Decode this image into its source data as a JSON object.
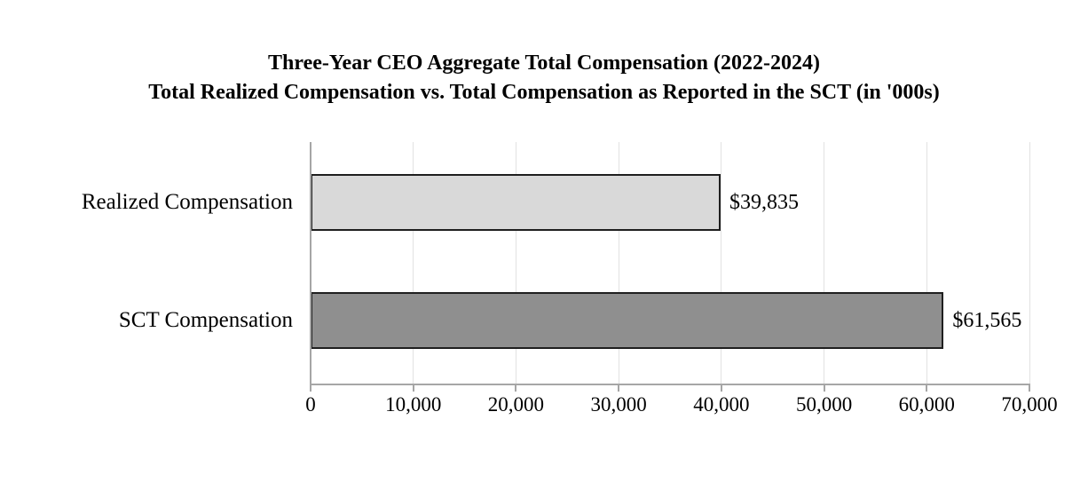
{
  "title": {
    "line1": "Three-Year CEO Aggregate Total Compensation (2022-2024)",
    "line2": "Total Realized Compensation vs. Total Compensation as Reported in the SCT (in '000s)"
  },
  "chart_data": {
    "type": "bar",
    "orientation": "horizontal",
    "title": "Three-Year CEO Aggregate Total Compensation (2022-2024)",
    "subtitle": "Total Realized Compensation vs. Total Compensation as Reported in the SCT (in '000s)",
    "categories": [
      "Realized Compensation",
      "SCT Compensation"
    ],
    "values": [
      39835,
      61565
    ],
    "value_labels": [
      "$39,835",
      "$61,565"
    ],
    "bar_colors": [
      "#d9d9d9",
      "#8f8f8f"
    ],
    "bar_border_color": "#1f1f1f",
    "xlim": [
      0,
      70000
    ],
    "x_ticks": [
      0,
      10000,
      20000,
      30000,
      40000,
      50000,
      60000,
      70000
    ],
    "x_tick_labels": [
      "0",
      "10,000",
      "20,000",
      "30,000",
      "40,000",
      "50,000",
      "60,000",
      "70,000"
    ],
    "grid": true,
    "gridline_color": "#e2e2e2",
    "axis_color": "#a6a6a6",
    "background": "#ffffff",
    "legend": "none"
  }
}
